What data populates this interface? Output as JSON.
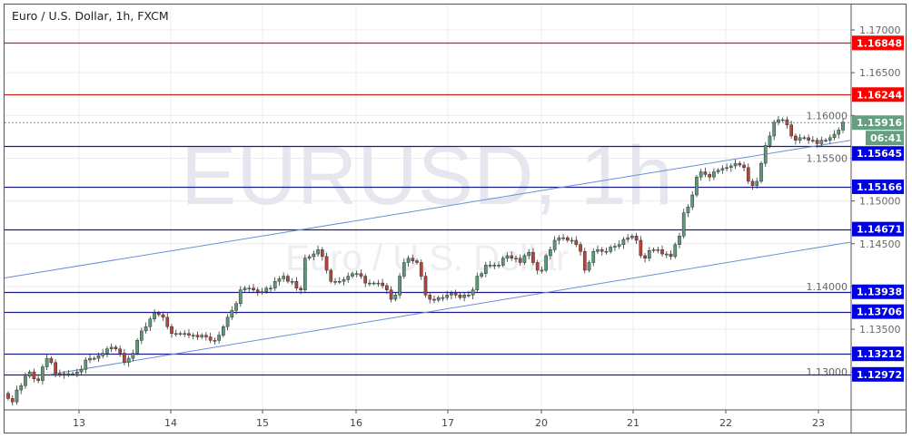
{
  "header": {
    "title": "Euro / U.S. Dollar, 1h, FXCM"
  },
  "watermark": {
    "symbol": "EURUSD, 1h",
    "name": "Euro / U.S. Dollar"
  },
  "chart_data": {
    "type": "candlestick",
    "title": "Euro / U.S. Dollar, 1h, FXCM",
    "ylim": [
      1.1255,
      1.1735
    ],
    "y_ticks": [
      "1.17000",
      "1.16500",
      "1.16000",
      "1.15500",
      "1.15000",
      "1.14500",
      "1.14000",
      "1.13500",
      "1.13000"
    ],
    "x_ticks": [
      "13",
      "14",
      "15",
      "16",
      "17",
      "20",
      "21",
      "22",
      "23"
    ],
    "grid": true,
    "colors": {
      "up": "#5b9a78",
      "down": "#b5443c",
      "level_blue": "#1c1c8a",
      "label_blue": "#0000e6",
      "level_red": "#cc2222",
      "label_red": "#ff0000",
      "current": "#639f80",
      "channel": "#6b8fd6"
    },
    "first_open": 1.1275,
    "closes": [
      1.1269,
      1.1265,
      1.1279,
      1.1284,
      1.1295,
      1.13,
      1.1292,
      1.129,
      1.1306,
      1.1316,
      1.1311,
      1.1298,
      1.1297,
      1.1298,
      1.1298,
      1.1298,
      1.13,
      1.1303,
      1.1314,
      1.1316,
      1.1316,
      1.1319,
      1.1322,
      1.1327,
      1.1329,
      1.1327,
      1.1322,
      1.1311,
      1.1316,
      1.1322,
      1.1337,
      1.1348,
      1.1353,
      1.1362,
      1.1369,
      1.1367,
      1.1364,
      1.1353,
      1.1345,
      1.1345,
      1.1345,
      1.1345,
      1.1343,
      1.1343,
      1.1341,
      1.1343,
      1.1341,
      1.1337,
      1.1337,
      1.1343,
      1.1353,
      1.1364,
      1.1372,
      1.138,
      1.1396,
      1.1398,
      1.1398,
      1.1396,
      1.1394,
      1.1394,
      1.1398,
      1.1398,
      1.1406,
      1.1409,
      1.1412,
      1.1406,
      1.1406,
      1.1398,
      1.1396,
      1.1433,
      1.1435,
      1.1438,
      1.1443,
      1.1435,
      1.1419,
      1.1406,
      1.1406,
      1.1406,
      1.1408,
      1.1412,
      1.1415,
      1.1415,
      1.1412,
      1.1404,
      1.1404,
      1.1404,
      1.1404,
      1.1401,
      1.1396,
      1.1385,
      1.139,
      1.1412,
      1.1428,
      1.1433,
      1.143,
      1.1428,
      1.1412,
      1.139,
      1.1385,
      1.1384,
      1.1387,
      1.1387,
      1.139,
      1.1392,
      1.139,
      1.1387,
      1.139,
      1.139,
      1.1396,
      1.1412,
      1.1415,
      1.1425,
      1.1425,
      1.1425,
      1.1425,
      1.1433,
      1.1436,
      1.1433,
      1.1433,
      1.1428,
      1.1436,
      1.144,
      1.1428,
      1.1419,
      1.1419,
      1.1436,
      1.1443,
      1.1454,
      1.1457,
      1.1457,
      1.1454,
      1.1454,
      1.1449,
      1.1441,
      1.1419,
      1.1428,
      1.1441,
      1.1443,
      1.1441,
      1.1441,
      1.1446,
      1.1447,
      1.1449,
      1.1455,
      1.1457,
      1.1459,
      1.1454,
      1.1436,
      1.1433,
      1.1442,
      1.1443,
      1.1443,
      1.1438,
      1.1438,
      1.1435,
      1.1449,
      1.1459,
      1.1486,
      1.1493,
      1.1507,
      1.1528,
      1.1534,
      1.1531,
      1.1528,
      1.1534,
      1.1536,
      1.1538,
      1.1539,
      1.1541,
      1.1544,
      1.1542,
      1.1539,
      1.1523,
      1.1518,
      1.1523,
      1.1544,
      1.1565,
      1.1576,
      1.1592,
      1.1595,
      1.1595,
      1.1589,
      1.1576,
      1.1571,
      1.1574,
      1.1574,
      1.1571,
      1.1571,
      1.1567,
      1.1571,
      1.1571,
      1.1574,
      1.1578,
      1.1583,
      1.1592
    ],
    "levels": [
      {
        "price": "1.16848",
        "color": "red"
      },
      {
        "price": "1.16244",
        "color": "red"
      },
      {
        "price": "1.15645",
        "color": "blue"
      },
      {
        "price": "1.15166",
        "color": "blue"
      },
      {
        "price": "1.14671",
        "color": "blue"
      },
      {
        "price": "1.13938",
        "color": "blue"
      },
      {
        "price": "1.13706",
        "color": "blue"
      },
      {
        "price": "1.13212",
        "color": "blue"
      },
      {
        "price": "1.12972",
        "color": "blue"
      }
    ],
    "current_price": "1.15916",
    "countdown": "06:41",
    "channel": {
      "upper": [
        1.141,
        1.1571
      ],
      "lower": [
        1.1297,
        1.1452
      ]
    }
  }
}
